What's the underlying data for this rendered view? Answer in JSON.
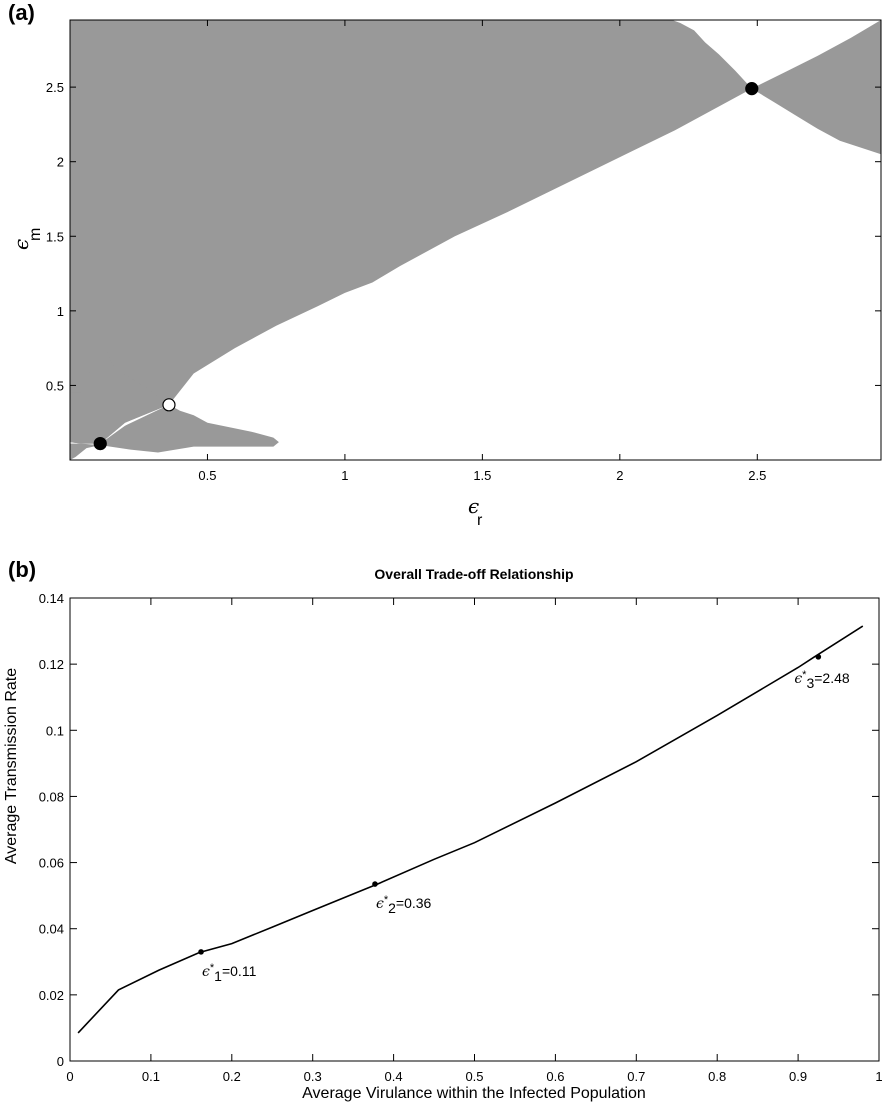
{
  "chart_data": [
    {
      "panel_label": "(a)",
      "type": "area",
      "title": "",
      "xlabel": {
        "symbol": "ϵ",
        "subscript": "r"
      },
      "ylabel": {
        "symbol": "ϵ",
        "subscript": "m"
      },
      "xlim": [
        0,
        2.95
      ],
      "ylim": [
        0,
        2.95
      ],
      "x_ticks": [
        0.5,
        1,
        1.5,
        2,
        2.5
      ],
      "y_ticks": [
        0.5,
        1,
        1.5,
        2,
        2.5
      ],
      "x_tick_labels": [
        "0.5",
        "1",
        "1.5",
        "2",
        "2.5"
      ],
      "y_tick_labels": [
        "0.5",
        "1",
        "1.5",
        "2",
        "2.5"
      ],
      "region_color": "#999999",
      "regions": [
        {
          "name": "upper-left-region",
          "points": [
            [
              0,
              2.95
            ],
            [
              2.19,
              2.95
            ],
            [
              2.22,
              2.93
            ],
            [
              2.27,
              2.88
            ],
            [
              2.31,
              2.8
            ],
            [
              2.36,
              2.72
            ],
            [
              2.42,
              2.61
            ],
            [
              2.48,
              2.49
            ],
            [
              2.2,
              2.21
            ],
            [
              1.9,
              1.94
            ],
            [
              1.6,
              1.67
            ],
            [
              1.4,
              1.5
            ],
            [
              1.2,
              1.3
            ],
            [
              1.1,
              1.19
            ],
            [
              1.0,
              1.12
            ],
            [
              0.9,
              1.03
            ],
            [
              0.75,
              0.9
            ],
            [
              0.6,
              0.75
            ],
            [
              0.45,
              0.58
            ],
            [
              0.36,
              0.37
            ],
            [
              0.2,
              0.25
            ],
            [
              0.11,
              0.11
            ],
            [
              0.04,
              0.11
            ],
            [
              0.0,
              0.12
            ]
          ]
        },
        {
          "name": "upper-right-region",
          "points": [
            [
              2.95,
              2.95
            ],
            [
              2.95,
              2.05
            ],
            [
              2.9,
              2.08
            ],
            [
              2.8,
              2.14
            ],
            [
              2.72,
              2.22
            ],
            [
              2.64,
              2.31
            ],
            [
              2.56,
              2.4
            ],
            [
              2.48,
              2.49
            ],
            [
              2.6,
              2.6
            ],
            [
              2.72,
              2.71
            ],
            [
              2.84,
              2.83
            ]
          ]
        },
        {
          "name": "lower-left-region",
          "points": [
            [
              0.11,
              0.11
            ],
            [
              0.2,
              0.23
            ],
            [
              0.36,
              0.37
            ],
            [
              0.4,
              0.33
            ],
            [
              0.45,
              0.3
            ],
            [
              0.5,
              0.25
            ],
            [
              0.58,
              0.22
            ],
            [
              0.66,
              0.19
            ],
            [
              0.74,
              0.15
            ],
            [
              0.76,
              0.12
            ],
            [
              0.74,
              0.09
            ],
            [
              0.45,
              0.09
            ],
            [
              0.32,
              0.05
            ],
            [
              0.22,
              0.07
            ],
            [
              0.11,
              0.1
            ]
          ]
        },
        {
          "name": "bottom-strip-region",
          "points": [
            [
              0.0,
              0.0
            ],
            [
              0.02,
              0.02
            ],
            [
              0.06,
              0.08
            ],
            [
              0.11,
              0.1
            ],
            [
              0.04,
              0.11
            ],
            [
              0.0,
              0.11
            ]
          ]
        },
        {
          "name": "left-notch-region",
          "points": [
            [
              0.0,
              0.12
            ],
            [
              0.0,
              0.45
            ],
            [
              0.04,
              0.45
            ],
            [
              0.04,
              0.55
            ],
            [
              0.08,
              0.6
            ],
            [
              0.08,
              0.78
            ],
            [
              0.12,
              0.78
            ],
            [
              0.14,
              0.7
            ],
            [
              0.16,
              0.62
            ],
            [
              0.22,
              0.55
            ],
            [
              0.29,
              0.47
            ],
            [
              0.34,
              0.39
            ],
            [
              0.36,
              0.37
            ],
            [
              0.2,
              0.25
            ],
            [
              0.11,
              0.11
            ],
            [
              0.04,
              0.11
            ]
          ]
        }
      ],
      "points": [
        {
          "name": "ess-point-1",
          "x": 0.11,
          "y": 0.11,
          "filled": true
        },
        {
          "name": "repeller-point",
          "x": 0.36,
          "y": 0.37,
          "filled": false
        },
        {
          "name": "ess-point-2",
          "x": 2.48,
          "y": 2.49,
          "filled": true
        }
      ]
    },
    {
      "panel_label": "(b)",
      "type": "line",
      "title": "Overall Trade-off Relationship",
      "xlabel": "Average Virulance within the Infected Population",
      "ylabel": "Average Transmission Rate",
      "xlim": [
        0,
        1
      ],
      "ylim": [
        0,
        0.14
      ],
      "x_ticks": [
        0,
        0.1,
        0.2,
        0.3,
        0.4,
        0.5,
        0.6,
        0.7,
        0.8,
        0.9,
        1
      ],
      "x_tick_labels": [
        "0",
        "0.1",
        "0.2",
        "0.3",
        "0.4",
        "0.5",
        "0.6",
        "0.7",
        "0.8",
        "0.9",
        "1"
      ],
      "y_ticks": [
        0,
        0.02,
        0.04,
        0.06,
        0.08,
        0.1,
        0.12,
        0.14
      ],
      "y_tick_labels": [
        "0",
        "0.02",
        "0.04",
        "0.06",
        "0.08",
        "0.1",
        "0.12",
        "0.14"
      ],
      "series": [
        {
          "x": [
            0.01,
            0.06,
            0.11,
            0.16,
            0.2,
            0.25,
            0.3,
            0.35,
            0.38,
            0.45,
            0.5,
            0.6,
            0.7,
            0.8,
            0.9,
            0.92,
            0.98
          ],
          "y": [
            0.0085,
            0.0215,
            0.0275,
            0.0328,
            0.0355,
            0.0405,
            0.0455,
            0.0505,
            0.0535,
            0.061,
            0.066,
            0.078,
            0.0905,
            0.1045,
            0.119,
            0.1222,
            0.1315
          ]
        }
      ],
      "annotations": [
        {
          "x": 0.162,
          "y": 0.033,
          "symbol": "ϵ",
          "star": "*",
          "sub": "1",
          "text": "=0.11"
        },
        {
          "x": 0.377,
          "y": 0.0535,
          "symbol": "ϵ",
          "star": "*",
          "sub": "2",
          "text": "=0.36"
        },
        {
          "x": 0.925,
          "y": 0.1222,
          "symbol": "ϵ",
          "star": "*",
          "sub": "3",
          "text": "=2.48"
        }
      ]
    }
  ]
}
